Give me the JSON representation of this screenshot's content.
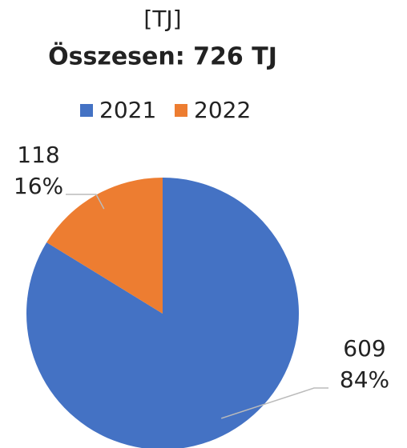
{
  "chart_data": {
    "type": "pie",
    "title": "[TJ]",
    "subtitle": "Összesen: 726 TJ",
    "categories": [
      "2021",
      "2022"
    ],
    "values": [
      609,
      118
    ],
    "percent_values": [
      84,
      16
    ],
    "percent_labels": [
      "84%",
      "16%"
    ],
    "colors": [
      "#4472c4",
      "#ed7d31"
    ],
    "legend": "top"
  }
}
